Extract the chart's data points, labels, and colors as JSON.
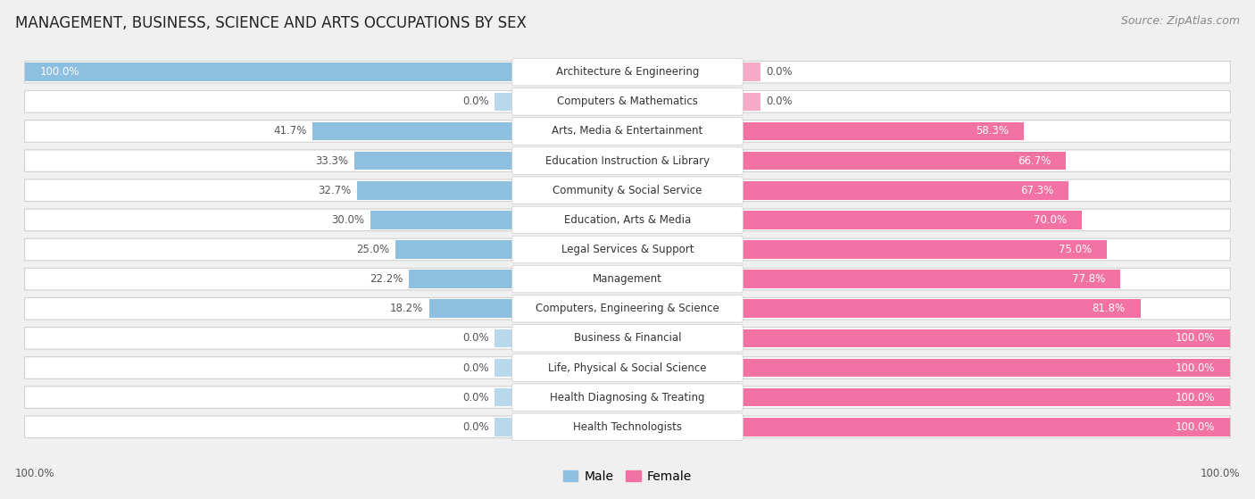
{
  "title": "MANAGEMENT, BUSINESS, SCIENCE AND ARTS OCCUPATIONS BY SEX",
  "source": "Source: ZipAtlas.com",
  "categories": [
    "Architecture & Engineering",
    "Computers & Mathematics",
    "Arts, Media & Entertainment",
    "Education Instruction & Library",
    "Community & Social Service",
    "Education, Arts & Media",
    "Legal Services & Support",
    "Management",
    "Computers, Engineering & Science",
    "Business & Financial",
    "Life, Physical & Social Science",
    "Health Diagnosing & Treating",
    "Health Technologists"
  ],
  "male": [
    100.0,
    0.0,
    41.7,
    33.3,
    32.7,
    30.0,
    25.0,
    22.2,
    18.2,
    0.0,
    0.0,
    0.0,
    0.0
  ],
  "female": [
    0.0,
    0.0,
    58.3,
    66.7,
    67.3,
    70.0,
    75.0,
    77.8,
    81.8,
    100.0,
    100.0,
    100.0,
    100.0
  ],
  "male_color": "#8cbfe0",
  "female_color": "#f272a4",
  "bg_color": "#f0f0f0",
  "bar_bg_color": "#ffffff",
  "title_fontsize": 12,
  "label_fontsize": 8.5,
  "source_fontsize": 9
}
